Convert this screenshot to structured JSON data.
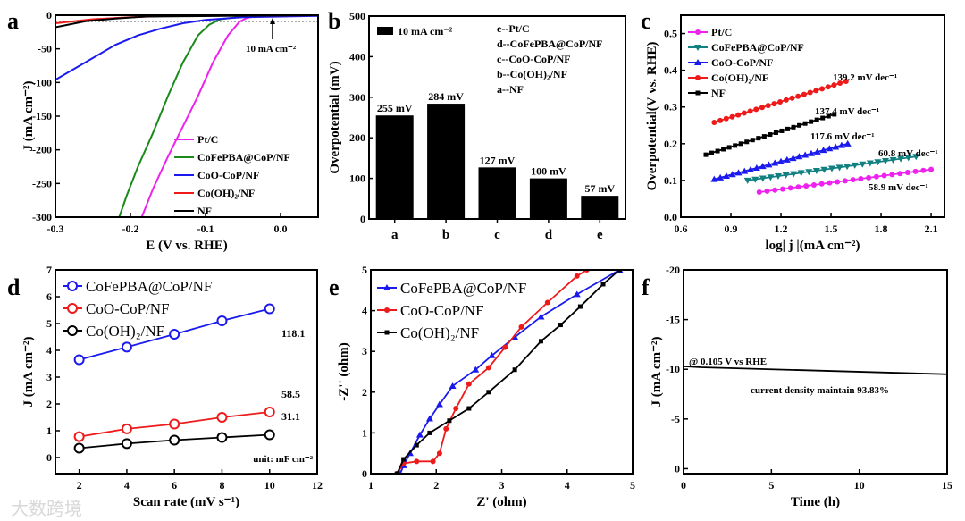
{
  "watermark": "大数跨境",
  "chart_data": [
    {
      "panel_label": "a",
      "type": "line",
      "xlabel": "E (V vs. RHE)",
      "ylabel": "J (mA cm⁻²)",
      "xlim": [
        -0.3,
        0.05
      ],
      "ylim": [
        -300,
        0
      ],
      "xticks": [
        "-0.3",
        "-0.2",
        "-0.1",
        "0.0"
      ],
      "yticks": [
        "0",
        "-50",
        "-100",
        "-150",
        "-200",
        "-250",
        "-300"
      ],
      "reference_line": -10,
      "annotations": [
        "10 mA cm⁻²"
      ],
      "series": [
        {
          "name": "Pt/C",
          "color": "#ee22ee",
          "x": [
            0.05,
            -0.03,
            -0.045,
            -0.055,
            -0.07,
            -0.09,
            -0.11,
            -0.13,
            -0.15,
            -0.17,
            -0.185
          ],
          "y": [
            0,
            -1,
            -4,
            -10,
            -30,
            -70,
            -120,
            -165,
            -210,
            -258,
            -300
          ]
        },
        {
          "name": "CoFePBA@CoP/NF",
          "color": "#1a8a1a",
          "x": [
            0.05,
            -0.05,
            -0.08,
            -0.095,
            -0.11,
            -0.13,
            -0.15,
            -0.17,
            -0.19,
            -0.205,
            -0.215
          ],
          "y": [
            0,
            -2,
            -6,
            -14,
            -30,
            -70,
            -120,
            -175,
            -225,
            -268,
            -300
          ]
        },
        {
          "name": "CoO-CoP/NF",
          "color": "#1a1aee",
          "x": [
            0.05,
            -0.05,
            -0.1,
            -0.13,
            -0.16,
            -0.19,
            -0.22,
            -0.26,
            -0.3
          ],
          "y": [
            -1,
            -3,
            -7,
            -12,
            -20,
            -30,
            -44,
            -70,
            -96
          ]
        },
        {
          "name": "Co(OH)₂/NF",
          "color": "#ee1a1a",
          "x": [
            0.05,
            -0.15,
            -0.2,
            -0.25,
            -0.3
          ],
          "y": [
            0,
            -1,
            -3,
            -6,
            -12
          ]
        },
        {
          "name": "NF",
          "color": "#000000",
          "x": [
            0.05,
            -0.18,
            -0.22,
            -0.26,
            -0.3
          ],
          "y": [
            0,
            -2,
            -5,
            -9,
            -18
          ]
        }
      ]
    },
    {
      "panel_label": "b",
      "type": "bar",
      "xlabel": "",
      "ylabel": "Overpotential (mV)",
      "ylim": [
        0,
        500
      ],
      "yticks": [
        "0",
        "100",
        "200",
        "300",
        "400",
        "500"
      ],
      "categories": [
        "a",
        "b",
        "c",
        "d",
        "e"
      ],
      "values": [
        255,
        284,
        127,
        100,
        57
      ],
      "data_labels": [
        "255 mV",
        "284 mV",
        "127 mV",
        "100 mV",
        "57 mV"
      ],
      "legend": "10 mA cm⁻²",
      "key": [
        "e--Pt/C",
        "d--CoFePBA@CoP/NF",
        "c--CoO-CoP/NF",
        "b--Co(OH)₂/NF",
        "a--NF"
      ]
    },
    {
      "panel_label": "c",
      "type": "line",
      "xlabel": "log| j |(mA cm⁻²)",
      "ylabel": "Overpotential(V vs. RHE)",
      "xlim": [
        0.6,
        2.18
      ],
      "ylim": [
        0,
        0.55
      ],
      "xticks": [
        "0.6",
        "0.9",
        "1.2",
        "1.5",
        "1.8",
        "2.1"
      ],
      "yticks": [
        "0.0",
        "0.1",
        "0.2",
        "0.3",
        "0.4",
        "0.5"
      ],
      "annotations": [
        "139.2 mV dec⁻¹",
        "137.4 mV dec⁻¹",
        "117.6 mV dec⁻¹",
        "60.8 mV dec⁻¹",
        "58.9 mV dec⁻¹"
      ],
      "series": [
        {
          "name": "Pt/C",
          "color": "#ee22ee",
          "marker": "star",
          "x": [
            1.07,
            2.1
          ],
          "y": [
            0.068,
            0.13
          ]
        },
        {
          "name": "CoFePBA@CoP/NF",
          "color": "#118080",
          "marker": "tri-down",
          "x": [
            1.0,
            2.01
          ],
          "y": [
            0.1,
            0.165
          ]
        },
        {
          "name": "CoO-CoP/NF",
          "color": "#1a1aee",
          "marker": "tri-up",
          "x": [
            0.8,
            1.6
          ],
          "y": [
            0.103,
            0.2
          ]
        },
        {
          "name": "Co(OH)₂/NF",
          "color": "#ee1a1a",
          "marker": "circle",
          "x": [
            0.8,
            1.59
          ],
          "y": [
            0.258,
            0.37
          ]
        },
        {
          "name": "NF",
          "color": "#000000",
          "marker": "square",
          "x": [
            0.75,
            1.52
          ],
          "y": [
            0.17,
            0.28
          ]
        }
      ]
    },
    {
      "panel_label": "d",
      "type": "line",
      "xlabel": "Scan rate (mV s⁻¹)",
      "ylabel": "J (mA cm⁻²)",
      "xlim": [
        1,
        12
      ],
      "ylim": [
        -0.6,
        7
      ],
      "xticks": [
        "2",
        "4",
        "6",
        "8",
        "10",
        "12"
      ],
      "yticks": [
        "0",
        "1",
        "2",
        "3",
        "4",
        "5",
        "6",
        "7"
      ],
      "annotations": [
        "118.1",
        "58.5",
        "31.1",
        "unit:  mF cm⁻²"
      ],
      "series": [
        {
          "name": "CoFePBA@CoP/NF",
          "color": "#1a1aee",
          "marker": "ocircle",
          "x": [
            2,
            4,
            6,
            8,
            10
          ],
          "y": [
            3.65,
            4.12,
            4.6,
            5.1,
            5.55
          ]
        },
        {
          "name": "CoO-CoP/NF",
          "color": "#ee1a1a",
          "marker": "ocircle",
          "x": [
            2,
            4,
            6,
            8,
            10
          ],
          "y": [
            0.78,
            1.07,
            1.25,
            1.5,
            1.7
          ]
        },
        {
          "name": "Co(OH)₂/NF",
          "color": "#000000",
          "marker": "ocircle",
          "x": [
            2,
            4,
            6,
            8,
            10
          ],
          "y": [
            0.35,
            0.52,
            0.65,
            0.75,
            0.85
          ]
        }
      ]
    },
    {
      "panel_label": "e",
      "type": "line",
      "xlabel": "Z' (ohm)",
      "ylabel": "-Z'' (ohm)",
      "xlim": [
        1,
        5
      ],
      "ylim": [
        0,
        5
      ],
      "xticks": [
        "1",
        "2",
        "3",
        "4",
        "5"
      ],
      "yticks": [
        "0",
        "1",
        "2",
        "3",
        "4",
        "5"
      ],
      "series": [
        {
          "name": "CoFePBA@CoP/NF",
          "color": "#1a1aee",
          "marker": "tri-up",
          "x": [
            1.45,
            1.5,
            1.6,
            1.75,
            1.9,
            2.05,
            2.25,
            2.6,
            2.85,
            3.2,
            3.6,
            4.15,
            4.8
          ],
          "y": [
            0,
            0.2,
            0.5,
            0.95,
            1.35,
            1.7,
            2.15,
            2.55,
            2.9,
            3.35,
            3.85,
            4.4,
            5.0
          ]
        },
        {
          "name": "CoO-CoP/NF",
          "color": "#ee1a1a",
          "marker": "circle",
          "x": [
            1.4,
            1.5,
            1.7,
            1.95,
            2.05,
            2.15,
            2.3,
            2.5,
            2.8,
            3.05,
            3.3,
            3.7,
            4.15,
            4.3
          ],
          "y": [
            0,
            0.25,
            0.3,
            0.3,
            0.5,
            1.1,
            1.6,
            2.2,
            2.6,
            3.1,
            3.6,
            4.2,
            4.85,
            5.0
          ]
        },
        {
          "name": "Co(OH)₂/NF",
          "color": "#000000",
          "marker": "square",
          "x": [
            1.4,
            1.5,
            1.7,
            1.9,
            2.2,
            2.5,
            2.8,
            3.2,
            3.6,
            3.9,
            4.2,
            4.55,
            4.8
          ],
          "y": [
            0,
            0.35,
            0.7,
            1.0,
            1.3,
            1.6,
            2.0,
            2.55,
            3.25,
            3.65,
            4.1,
            4.65,
            5.0
          ]
        }
      ]
    },
    {
      "panel_label": "f",
      "type": "line",
      "xlabel": "Time (h)",
      "ylabel": "J (mA cm⁻²)",
      "xlim": [
        0,
        15
      ],
      "ylim": [
        0.5,
        -20
      ],
      "xticks": [
        "0",
        "5",
        "10",
        "15"
      ],
      "yticks": [
        "-20",
        "-15",
        "-10",
        "-5",
        "0"
      ],
      "annotations": [
        "@ 0.105 V vs RHE",
        "current density maintain 93.83%"
      ],
      "series": [
        {
          "name": "stability",
          "color": "#000000",
          "x": [
            0,
            1,
            3,
            5,
            7,
            9,
            11,
            13,
            15
          ],
          "y": [
            -10.3,
            -10.2,
            -10.1,
            -10.0,
            -9.9,
            -9.8,
            -9.7,
            -9.6,
            -9.5
          ]
        }
      ]
    }
  ]
}
